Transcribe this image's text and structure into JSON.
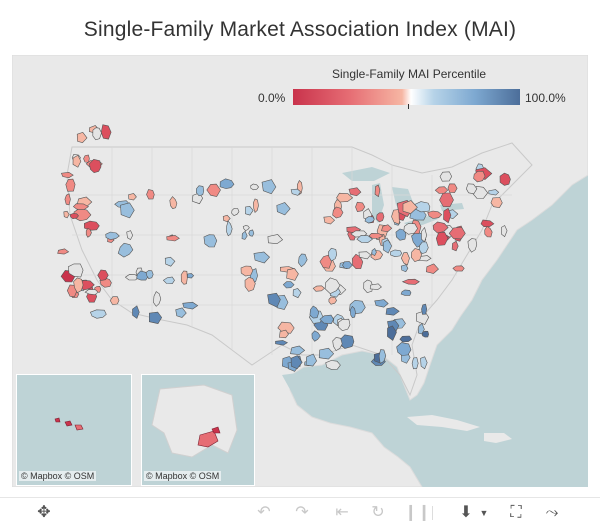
{
  "title": "Single-Family Market Association Index (MAI)",
  "legend": {
    "title": "Single-Family MAI Percentile",
    "min_label": "0.0%",
    "max_label": "100.0%",
    "color_low": "#c9334c",
    "color_mid": "#ffffff",
    "color_high": "#4c6e9a"
  },
  "credits": {
    "mapbox": "© Mapbox",
    "osm": "© OSM"
  },
  "toolbar": {
    "pan_icon": "move-icon",
    "undo_icon": "undo-icon",
    "redo_icon": "redo-icon",
    "revert_icon": "revert-icon",
    "refresh_icon": "refresh-icon",
    "pause_icon": "pause-icon",
    "download_icon": "download-icon",
    "fullscreen_icon": "fullscreen-icon",
    "share_icon": "share-icon"
  }
}
